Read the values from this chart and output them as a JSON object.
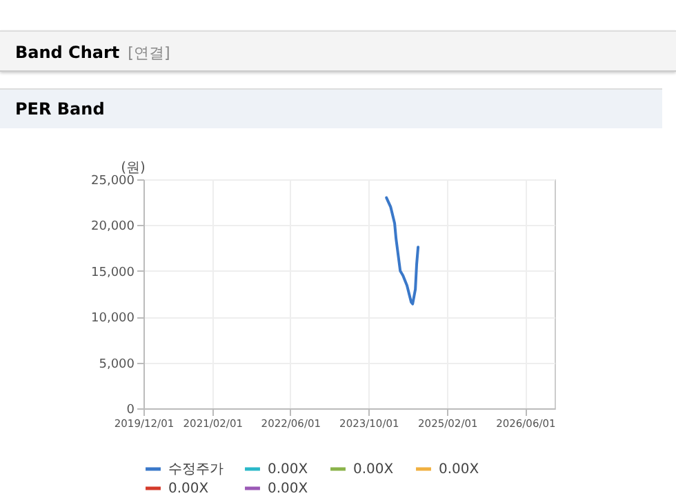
{
  "chart_data": {
    "type": "line",
    "title": "Band Chart [연결]",
    "subtitle": "PER Band",
    "ylabel": "(원)",
    "series": [
      {
        "name": "수정주가",
        "color": "#3a78c9",
        "x": [
          "2024-01-20",
          "2024-02-15",
          "2024-03-11",
          "2024-03-20",
          "2024-04-15",
          "2024-05-02",
          "2024-05-27",
          "2024-06-22",
          "2024-07-01",
          "2024-07-18",
          "2024-07-26",
          "2024-08-04"
        ],
        "values": [
          23000,
          22000,
          20200,
          18500,
          15000,
          14500,
          13400,
          11600,
          11400,
          13000,
          15700,
          17600
        ]
      },
      {
        "name": "0.00X",
        "color": "#2ab8c8"
      },
      {
        "name": "0.00X",
        "color": "#8ab34a"
      },
      {
        "name": "0.00X",
        "color": "#f0b040"
      },
      {
        "name": "0.00X",
        "color": "#d43a2a"
      },
      {
        "name": "0.00X",
        "color": "#9b59b6"
      }
    ],
    "xlim": [
      "2019-12-01",
      "2026-12-01"
    ],
    "xticks": [
      {
        "value": "2019-12-01",
        "label": "2019/12/01"
      },
      {
        "value": "2021-02-01",
        "label": "2021/02/01"
      },
      {
        "value": "2022-06-01",
        "label": "2022/06/01"
      },
      {
        "value": "2023-10-01",
        "label": "2023/10/01"
      },
      {
        "value": "2025-02-01",
        "label": "2025/02/01"
      },
      {
        "value": "2026-06-01",
        "label": "2026/06/01"
      }
    ],
    "ylim": [
      0,
      25000
    ],
    "yticks": [
      {
        "value": 0,
        "label": "0"
      },
      {
        "value": 5000,
        "label": "5,000"
      },
      {
        "value": 10000,
        "label": "10,000"
      },
      {
        "value": 15000,
        "label": "15,000"
      },
      {
        "value": 20000,
        "label": "20,000"
      },
      {
        "value": 25000,
        "label": "25,000"
      }
    ],
    "grid": true,
    "legend": "bottom",
    "line_style": "solid",
    "marker": "none"
  }
}
